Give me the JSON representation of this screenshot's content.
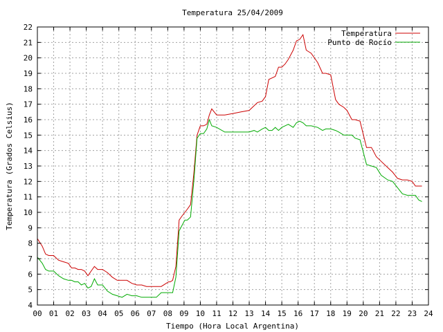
{
  "chart_data": {
    "type": "line",
    "title": "Temperatura 25/04/2009",
    "xlabel": "Tiempo (Hora Local Argentina)",
    "ylabel": "Temperatura (Grados Celsius)",
    "xlim": [
      0,
      24
    ],
    "ylim": [
      4,
      22
    ],
    "x_ticks": [
      "00",
      "01",
      "02",
      "03",
      "04",
      "05",
      "06",
      "07",
      "08",
      "09",
      "10",
      "11",
      "12",
      "13",
      "14",
      "15",
      "16",
      "17",
      "18",
      "19",
      "20",
      "21",
      "22",
      "23",
      "24"
    ],
    "y_ticks": [
      "4",
      "5",
      "6",
      "7",
      "8",
      "9",
      "10",
      "11",
      "12",
      "13",
      "14",
      "15",
      "16",
      "17",
      "18",
      "19",
      "20",
      "21",
      "22"
    ],
    "grid": true,
    "legend_position": "top-right",
    "series": [
      {
        "name": "Temperatura",
        "color": "#cc0000",
        "x": [
          0.0,
          0.3,
          0.5,
          0.7,
          1.0,
          1.3,
          1.6,
          1.9,
          2.1,
          2.3,
          2.5,
          2.7,
          2.9,
          3.1,
          3.3,
          3.5,
          3.7,
          4.0,
          4.3,
          4.6,
          4.9,
          5.2,
          5.5,
          5.8,
          6.1,
          6.4,
          6.7,
          7.0,
          7.3,
          7.6,
          7.9,
          8.05,
          8.15,
          8.3,
          8.5,
          8.7,
          8.9,
          9.05,
          9.2,
          9.4,
          9.6,
          9.8,
          10.0,
          10.2,
          10.4,
          10.55,
          10.7,
          11.0,
          11.5,
          12.0,
          12.5,
          13.0,
          13.3,
          13.5,
          13.8,
          14.0,
          14.2,
          14.4,
          14.6,
          14.8,
          15.0,
          15.2,
          15.4,
          15.7,
          15.9,
          16.1,
          16.3,
          16.5,
          16.8,
          17.2,
          17.5,
          17.7,
          18.0,
          18.3,
          18.5,
          18.8,
          19.0,
          19.3,
          19.5,
          19.8,
          20.2,
          20.5,
          20.8,
          21.1,
          21.5,
          21.8,
          22.1,
          22.4,
          22.7,
          23.0,
          23.2,
          23.4,
          23.6
        ],
        "values": [
          8.3,
          7.8,
          7.3,
          7.2,
          7.2,
          6.9,
          6.8,
          6.7,
          6.4,
          6.4,
          6.3,
          6.3,
          6.2,
          5.9,
          6.2,
          6.5,
          6.3,
          6.3,
          6.1,
          5.8,
          5.6,
          5.6,
          5.6,
          5.4,
          5.3,
          5.3,
          5.2,
          5.2,
          5.2,
          5.2,
          5.4,
          5.5,
          5.5,
          5.6,
          6.5,
          9.5,
          9.8,
          10.0,
          10.2,
          10.5,
          12.5,
          15.0,
          15.6,
          15.6,
          15.7,
          16.3,
          16.7,
          16.3,
          16.3,
          16.4,
          16.5,
          16.6,
          16.9,
          17.1,
          17.2,
          17.5,
          18.6,
          18.7,
          18.8,
          19.4,
          19.4,
          19.6,
          19.9,
          20.5,
          21.1,
          21.2,
          21.5,
          20.5,
          20.3,
          19.7,
          19.0,
          19.0,
          18.9,
          17.3,
          17.0,
          16.8,
          16.6,
          16.0,
          16.0,
          15.9,
          14.2,
          14.2,
          13.6,
          13.3,
          12.9,
          12.6,
          12.2,
          12.1,
          12.1,
          12.0,
          11.7,
          11.7,
          11.7
        ]
      },
      {
        "name": "Punto de Rocío",
        "color": "#00aa00",
        "x": [
          0.0,
          0.3,
          0.5,
          0.7,
          1.0,
          1.3,
          1.6,
          1.9,
          2.1,
          2.3,
          2.5,
          2.7,
          2.9,
          3.1,
          3.3,
          3.5,
          3.7,
          4.0,
          4.3,
          4.6,
          4.9,
          5.2,
          5.5,
          5.8,
          6.1,
          6.4,
          6.7,
          7.0,
          7.3,
          7.6,
          7.9,
          8.05,
          8.15,
          8.3,
          8.5,
          8.7,
          8.9,
          9.05,
          9.2,
          9.4,
          9.6,
          9.8,
          10.0,
          10.2,
          10.4,
          10.55,
          10.7,
          11.0,
          11.5,
          12.0,
          12.5,
          13.0,
          13.3,
          13.5,
          13.8,
          14.0,
          14.2,
          14.4,
          14.6,
          14.8,
          15.0,
          15.2,
          15.4,
          15.7,
          15.9,
          16.1,
          16.3,
          16.5,
          16.8,
          17.2,
          17.5,
          17.7,
          18.0,
          18.3,
          18.5,
          18.8,
          19.0,
          19.3,
          19.5,
          19.8,
          20.2,
          20.5,
          20.8,
          21.1,
          21.5,
          21.8,
          22.1,
          22.4,
          22.7,
          23.0,
          23.2,
          23.4,
          23.6
        ],
        "values": [
          7.1,
          6.7,
          6.3,
          6.2,
          6.2,
          5.9,
          5.7,
          5.6,
          5.6,
          5.5,
          5.5,
          5.3,
          5.4,
          5.1,
          5.2,
          5.7,
          5.3,
          5.3,
          4.9,
          4.7,
          4.6,
          4.5,
          4.7,
          4.6,
          4.6,
          4.5,
          4.5,
          4.5,
          4.5,
          4.8,
          4.8,
          4.8,
          4.8,
          4.8,
          5.8,
          8.8,
          9.2,
          9.5,
          9.5,
          9.7,
          12.0,
          14.8,
          15.1,
          15.1,
          15.4,
          16.0,
          15.6,
          15.5,
          15.2,
          15.2,
          15.2,
          15.2,
          15.3,
          15.2,
          15.4,
          15.5,
          15.3,
          15.3,
          15.5,
          15.3,
          15.5,
          15.6,
          15.7,
          15.5,
          15.8,
          15.9,
          15.8,
          15.6,
          15.6,
          15.5,
          15.3,
          15.4,
          15.4,
          15.3,
          15.2,
          15.0,
          15.0,
          15.0,
          14.8,
          14.7,
          13.1,
          13.0,
          12.9,
          12.4,
          12.1,
          12.0,
          11.6,
          11.2,
          11.1,
          11.1,
          11.1,
          10.8,
          10.7
        ]
      }
    ]
  }
}
